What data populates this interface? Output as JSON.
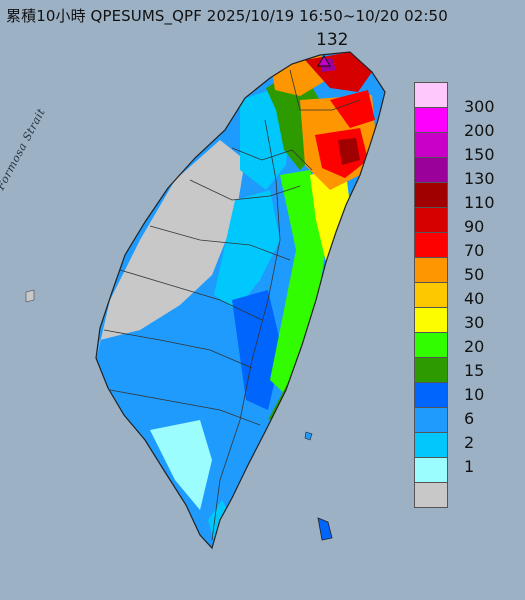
{
  "title": "累積10小時 QPESUMS_QPF 2025/10/19 16:50~10/20 02:50",
  "max_value": "132",
  "strait_label": "Formosa Strait",
  "legend": {
    "labels": [
      "300",
      "200",
      "150",
      "130",
      "110",
      "90",
      "70",
      "50",
      "40",
      "30",
      "20",
      "15",
      "10",
      "6",
      "2",
      "1"
    ],
    "colors": [
      "#fdc9fd",
      "#fd00fd",
      "#c800c8",
      "#9a009a",
      "#a00000",
      "#d60000",
      "#fd0000",
      "#fd9600",
      "#fdc800",
      "#fdfd00",
      "#32fd00",
      "#2d9b00",
      "#0065fd",
      "#1e9bfd",
      "#00c8fd",
      "#9bfdfd",
      "#c8c8c8"
    ]
  }
}
